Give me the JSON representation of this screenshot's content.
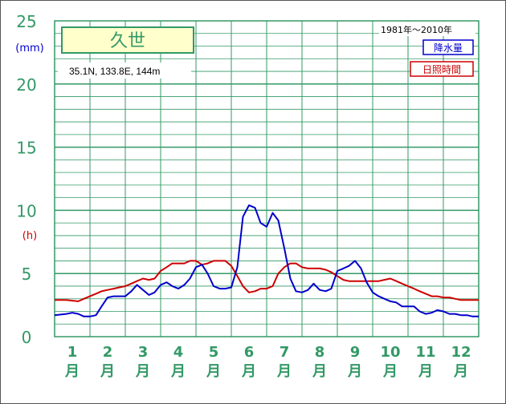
{
  "chart_data": {
    "type": "line",
    "station_name": "久世",
    "location": "35.1N,  133.8E,  144m",
    "period": "1981年～2010年",
    "y_unit_precip": "(mm)",
    "y_unit_sunshine": "(h)",
    "ylim": [
      0,
      25
    ],
    "yticks": [
      "0",
      "5",
      "10",
      "15",
      "20",
      "25"
    ],
    "months": [
      "1",
      "2",
      "3",
      "4",
      "5",
      "6",
      "7",
      "8",
      "9",
      "10",
      "11",
      "12"
    ],
    "month_suffix": "月",
    "grid": true,
    "legend_position": "top-right",
    "series": [
      {
        "name": "降水量",
        "color": "#0000cc",
        "x": [
          0.0,
          0.33,
          0.5,
          0.67,
          0.83,
          1.0,
          1.17,
          1.33,
          1.5,
          1.67,
          2.0,
          2.17,
          2.33,
          2.5,
          2.67,
          2.83,
          3.0,
          3.17,
          3.33,
          3.5,
          3.67,
          3.83,
          4.0,
          4.17,
          4.33,
          4.5,
          4.67,
          4.83,
          5.0,
          5.17,
          5.33,
          5.5,
          5.67,
          5.83,
          6.0,
          6.17,
          6.33,
          6.5,
          6.67,
          6.83,
          7.0,
          7.17,
          7.33,
          7.5,
          7.67,
          7.83,
          8.0,
          8.17,
          8.33,
          8.5,
          8.67,
          8.83,
          9.0,
          9.17,
          9.33,
          9.5,
          9.67,
          9.83,
          10.0,
          10.17,
          10.33,
          10.5,
          10.67,
          10.83,
          11.0,
          11.17,
          11.33,
          11.5,
          11.67,
          11.83,
          12.0
        ],
        "values": [
          1.7,
          1.8,
          1.9,
          1.8,
          1.6,
          1.6,
          1.7,
          2.4,
          3.1,
          3.2,
          3.2,
          3.6,
          4.1,
          3.7,
          3.3,
          3.5,
          4.1,
          4.3,
          4.0,
          3.8,
          4.1,
          4.6,
          5.5,
          5.7,
          5.0,
          4.0,
          3.8,
          3.8,
          3.9,
          5.5,
          9.5,
          10.4,
          10.2,
          9.0,
          8.7,
          9.8,
          9.2,
          7.0,
          4.6,
          3.6,
          3.5,
          3.7,
          4.2,
          3.7,
          3.6,
          3.8,
          5.2,
          5.4,
          5.6,
          6.0,
          5.4,
          4.3,
          3.5,
          3.2,
          3.0,
          2.8,
          2.7,
          2.4,
          2.4,
          2.4,
          2.0,
          1.8,
          1.9,
          2.1,
          2.0,
          1.8,
          1.8,
          1.7,
          1.7,
          1.6,
          1.6
        ]
      },
      {
        "name": "日照時間",
        "color": "#cc0000",
        "x": [
          0.0,
          0.33,
          0.67,
          0.83,
          1.0,
          1.17,
          1.33,
          1.5,
          1.67,
          1.83,
          2.0,
          2.17,
          2.33,
          2.5,
          2.67,
          2.83,
          3.0,
          3.17,
          3.33,
          3.5,
          3.67,
          3.83,
          4.0,
          4.17,
          4.33,
          4.5,
          4.67,
          4.83,
          5.0,
          5.17,
          5.33,
          5.5,
          5.67,
          5.83,
          6.0,
          6.17,
          6.33,
          6.5,
          6.67,
          6.83,
          7.0,
          7.17,
          7.33,
          7.5,
          7.67,
          7.83,
          8.0,
          8.17,
          8.33,
          8.5,
          8.67,
          8.83,
          9.0,
          9.17,
          9.33,
          9.5,
          9.67,
          9.83,
          10.0,
          10.17,
          10.33,
          10.5,
          10.67,
          10.83,
          11.0,
          11.17,
          11.33,
          11.5,
          11.67,
          12.0
        ],
        "values": [
          2.9,
          2.9,
          2.8,
          3.0,
          3.2,
          3.4,
          3.6,
          3.7,
          3.8,
          3.9,
          4.0,
          4.2,
          4.4,
          4.6,
          4.5,
          4.6,
          5.2,
          5.5,
          5.8,
          5.8,
          5.8,
          6.0,
          6.0,
          5.7,
          5.8,
          6.0,
          6.0,
          6.0,
          5.6,
          4.8,
          4.0,
          3.5,
          3.6,
          3.8,
          3.8,
          4.0,
          5.0,
          5.5,
          5.8,
          5.8,
          5.5,
          5.4,
          5.4,
          5.4,
          5.3,
          5.1,
          4.8,
          4.5,
          4.4,
          4.4,
          4.4,
          4.4,
          4.4,
          4.4,
          4.5,
          4.6,
          4.4,
          4.2,
          4.0,
          3.8,
          3.6,
          3.4,
          3.2,
          3.2,
          3.1,
          3.1,
          3.0,
          2.9,
          2.9,
          2.9
        ]
      }
    ]
  }
}
